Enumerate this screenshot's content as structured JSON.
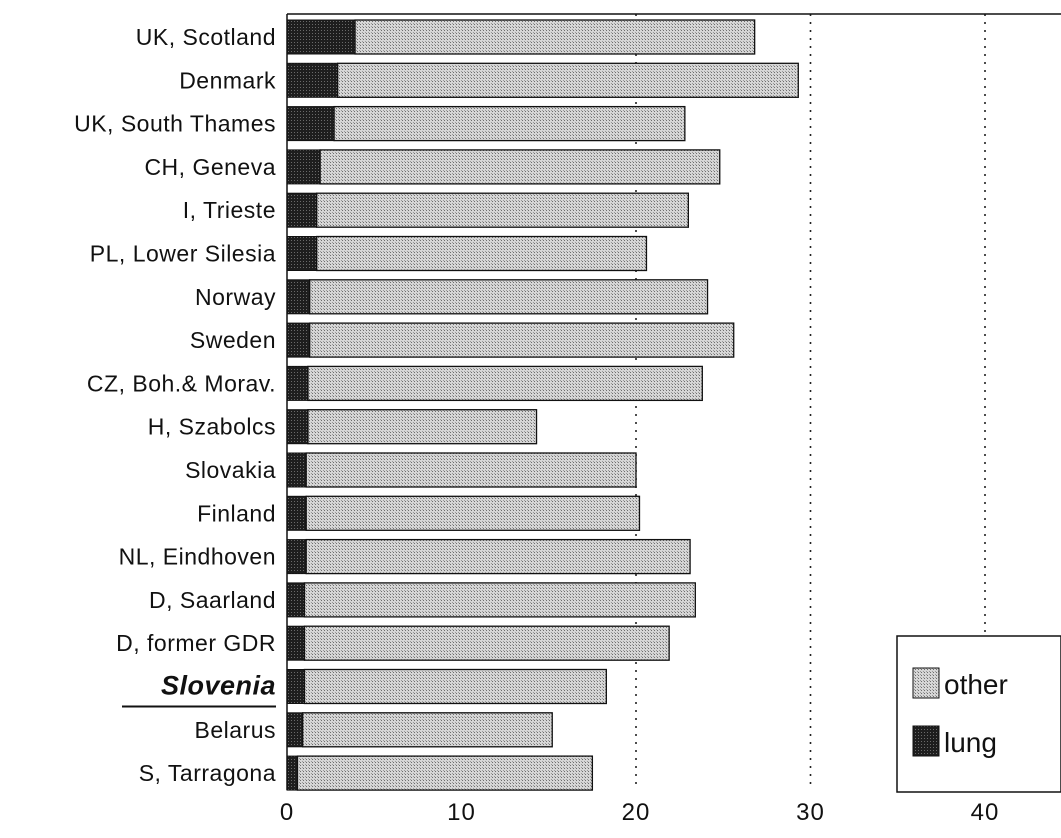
{
  "chart_data": {
    "type": "bar",
    "orientation": "horizontal",
    "stacked": true,
    "categories": [
      "UK, Scotland",
      "Denmark",
      "UK, South Thames",
      "CH, Geneva",
      "I, Trieste",
      "PL, Lower Silesia",
      "Norway",
      "Sweden",
      "CZ, Boh.& Morav.",
      "H, Szabolcs",
      "Slovakia",
      "Finland",
      "NL, Eindhoven",
      "D, Saarland",
      "D, former GDR",
      "Slovenia",
      "Belarus",
      "S, Tarragona"
    ],
    "highlight_category": "Slovenia",
    "series": [
      {
        "name": "lung",
        "color": "#2a2a2a",
        "values": [
          3.9,
          2.9,
          2.7,
          1.9,
          1.7,
          1.7,
          1.3,
          1.3,
          1.2,
          1.2,
          1.1,
          1.1,
          1.1,
          1.0,
          1.0,
          1.0,
          0.9,
          0.6
        ]
      },
      {
        "name": "other",
        "color": "#c4c4c4",
        "values": [
          22.9,
          26.4,
          20.1,
          22.9,
          21.3,
          18.9,
          22.8,
          24.3,
          22.6,
          13.1,
          18.9,
          19.1,
          22.0,
          22.4,
          20.9,
          17.3,
          14.3,
          16.9
        ]
      }
    ],
    "xlim": [
      0,
      44
    ],
    "xticks": [
      0,
      10,
      20,
      30,
      40
    ],
    "xticks_labels": [
      "0",
      "10",
      "20",
      "30",
      "40"
    ],
    "gridlines_x": [
      20,
      30,
      40
    ],
    "grid_style": "dotted",
    "xlabel": "",
    "ylabel": "",
    "title": "",
    "legend": {
      "position": "bottom-right",
      "entries": [
        "other",
        "lung"
      ]
    }
  }
}
